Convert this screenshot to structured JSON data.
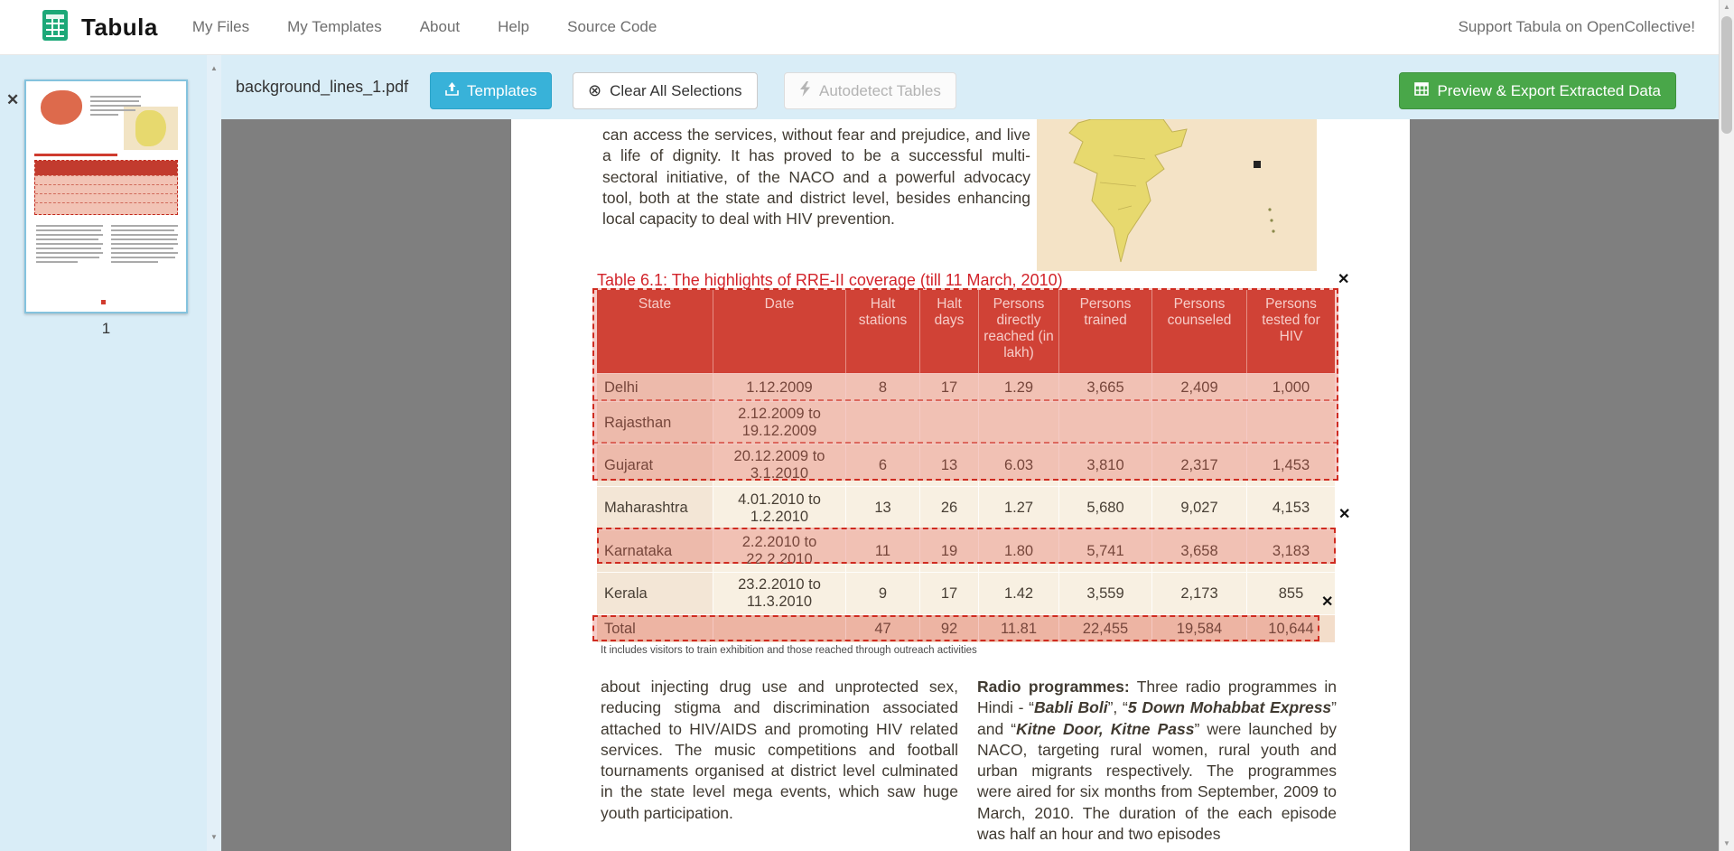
{
  "navbar": {
    "brand": "Tabula",
    "items": [
      {
        "label": "My Files"
      },
      {
        "label": "My Templates"
      },
      {
        "label": "About"
      },
      {
        "label": "Help"
      },
      {
        "label": "Source Code"
      }
    ],
    "right_text": "Support Tabula on OpenCollective!"
  },
  "toolbar": {
    "filename": "background_lines_1.pdf",
    "templates_label": "Templates",
    "clear_label": "Clear All Selections",
    "autodetect_label": "Autodetect Tables",
    "export_label": "Preview & Export Extracted Data"
  },
  "sidebar": {
    "page_number": "1"
  },
  "document": {
    "intro_paragraph": "can access the services, without fear and prejudice, and live a life of dignity. It has proved to be a successful multi-sectoral initiative, of the NACO and a powerful advocacy tool, both at the state and district level, besides enhancing local capacity to deal with HIV prevention.",
    "table_title": "Table 6.1: The highlights of RRE-II coverage (till 11 March, 2010)",
    "table": {
      "headers": [
        "State",
        "Date",
        "Halt stations",
        "Halt days",
        "Persons directly reached (in lakh)",
        "Persons trained",
        "Persons counseled",
        "Persons tested for HIV"
      ],
      "rows": [
        [
          "Delhi",
          "1.12.2009",
          "8",
          "17",
          "1.29",
          "3,665",
          "2,409",
          "1,000"
        ],
        [
          "Rajasthan",
          "2.12.2009 to 19.12.2009",
          "",
          "",
          "",
          "",
          "",
          ""
        ],
        [
          "Gujarat",
          "20.12.2009 to 3.1.2010",
          "6",
          "13",
          "6.03",
          "3,810",
          "2,317",
          "1,453"
        ],
        [
          "Maharashtra",
          "4.01.2010 to 1.2.2010",
          "13",
          "26",
          "1.27",
          "5,680",
          "9,027",
          "4,153"
        ],
        [
          "Karnataka",
          "2.2.2010 to 22.2.2010",
          "11",
          "19",
          "1.80",
          "5,741",
          "3,658",
          "3,183"
        ],
        [
          "Kerala",
          "23.2.2010 to 11.3.2010",
          "9",
          "17",
          "1.42",
          "3,559",
          "2,173",
          "855"
        ],
        [
          "Total",
          "",
          "47",
          "92",
          "11.81",
          "22,455",
          "19,584",
          "10,644"
        ]
      ]
    },
    "footnote": "It includes visitors to train exhibition and those reached through outreach activities",
    "left_column": "about injecting drug use and unprotected sex, reducing stigma and discrimination associated attached to HIV/AIDS and promoting HIV related services. The music competitions and football tournaments organised at district level culminated in the state level mega events, which saw huge youth participation.",
    "right_column_segments": [
      {
        "text": "Radio programmes:",
        "bold": true
      },
      {
        "text": " Three radio programmes in Hindi - “"
      },
      {
        "text": "Babli Boli",
        "bold": true,
        "italic": true
      },
      {
        "text": "”, “"
      },
      {
        "text": "5 Down Mohabbat Express",
        "bold": true,
        "italic": true
      },
      {
        "text": "” and “"
      },
      {
        "text": "Kitne Door, Kitne Pass",
        "bold": true,
        "italic": true
      },
      {
        "text": "” were launched by NACO, targeting rural women, rural youth and urban migrants respectively. The programmes were aired for six months from September, 2009 to March, 2010. The duration of the each episode was half an hour and two episodes"
      }
    ]
  },
  "icons": {
    "close": "✕",
    "clear": "⊗",
    "scroll_up": "▲",
    "scroll_down": "▼"
  },
  "colors": {
    "toolbar_bg": "#d9edf7",
    "accent_blue": "#38b2d9",
    "accent_green": "#49a749",
    "table_header_red": "#c93a2e",
    "selection_red": "#cf2b20"
  }
}
